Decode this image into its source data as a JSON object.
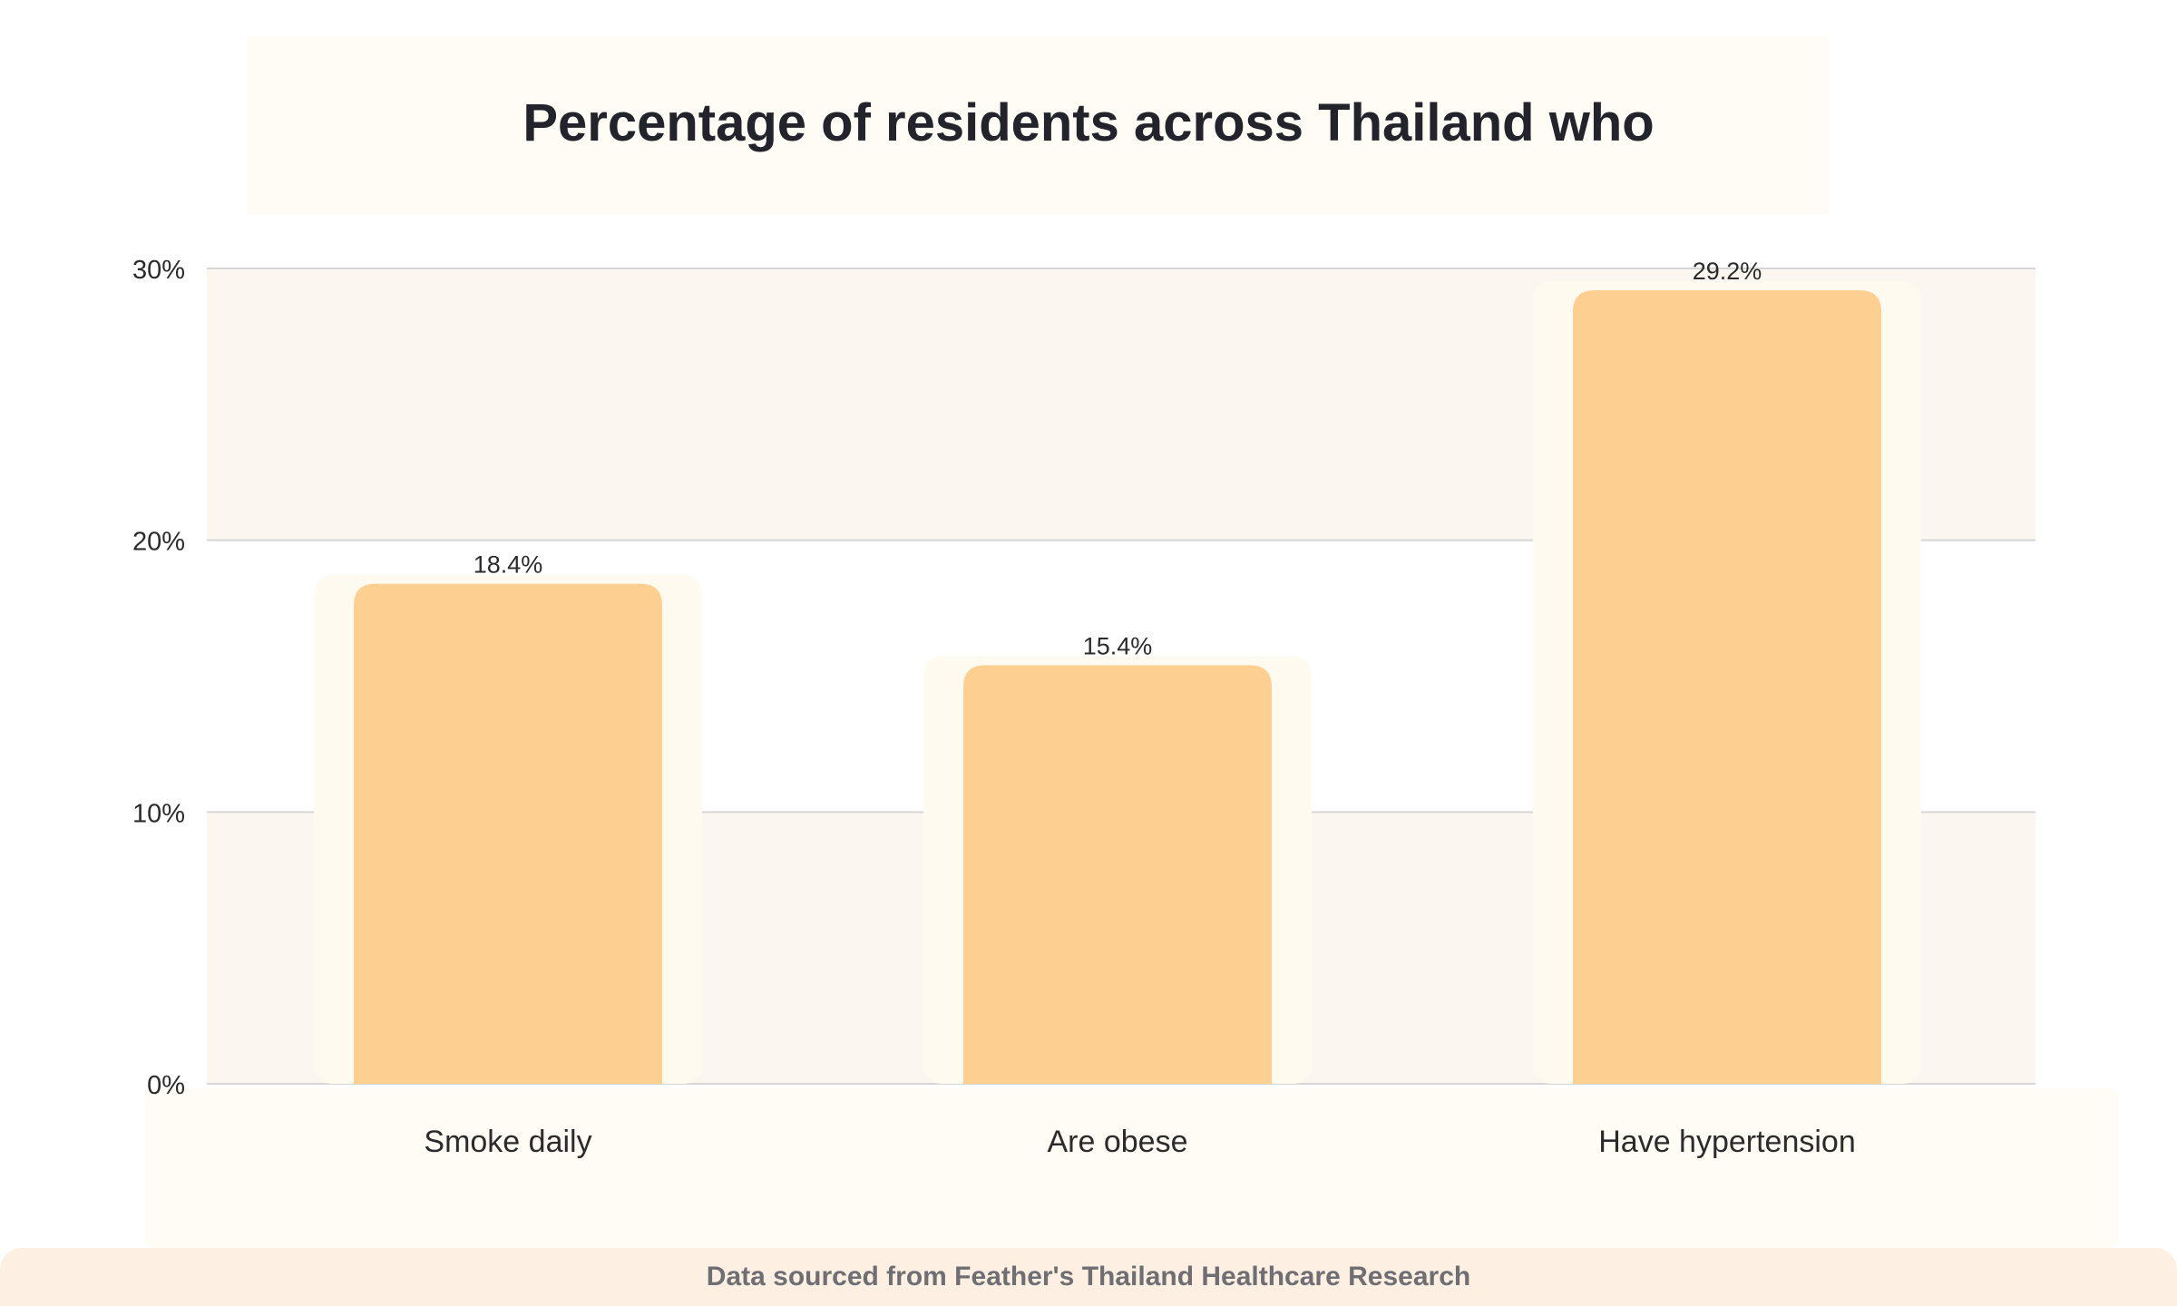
{
  "chart_data": {
    "type": "bar",
    "title": "Percentage of residents across Thailand who",
    "categories": [
      "Smoke daily",
      "Are obese",
      "Have hypertension"
    ],
    "values": [
      18.4,
      15.4,
      29.2
    ],
    "value_labels": [
      "18.4%",
      "15.4%",
      "29.2%"
    ],
    "yticks": [
      0,
      10,
      20,
      30
    ],
    "ytick_labels": [
      "0%",
      "10%",
      "20%",
      "30%"
    ],
    "ylim": [
      0,
      30
    ],
    "xlabel": "",
    "ylabel": "",
    "grid": true,
    "legend": "none",
    "bar_color": "#fdd092",
    "band_color": "#fbf7f0",
    "grid_color": "#d6d6d6"
  },
  "footer": {
    "source": "Data sourced from Feather's Thailand Healthcare Research"
  }
}
